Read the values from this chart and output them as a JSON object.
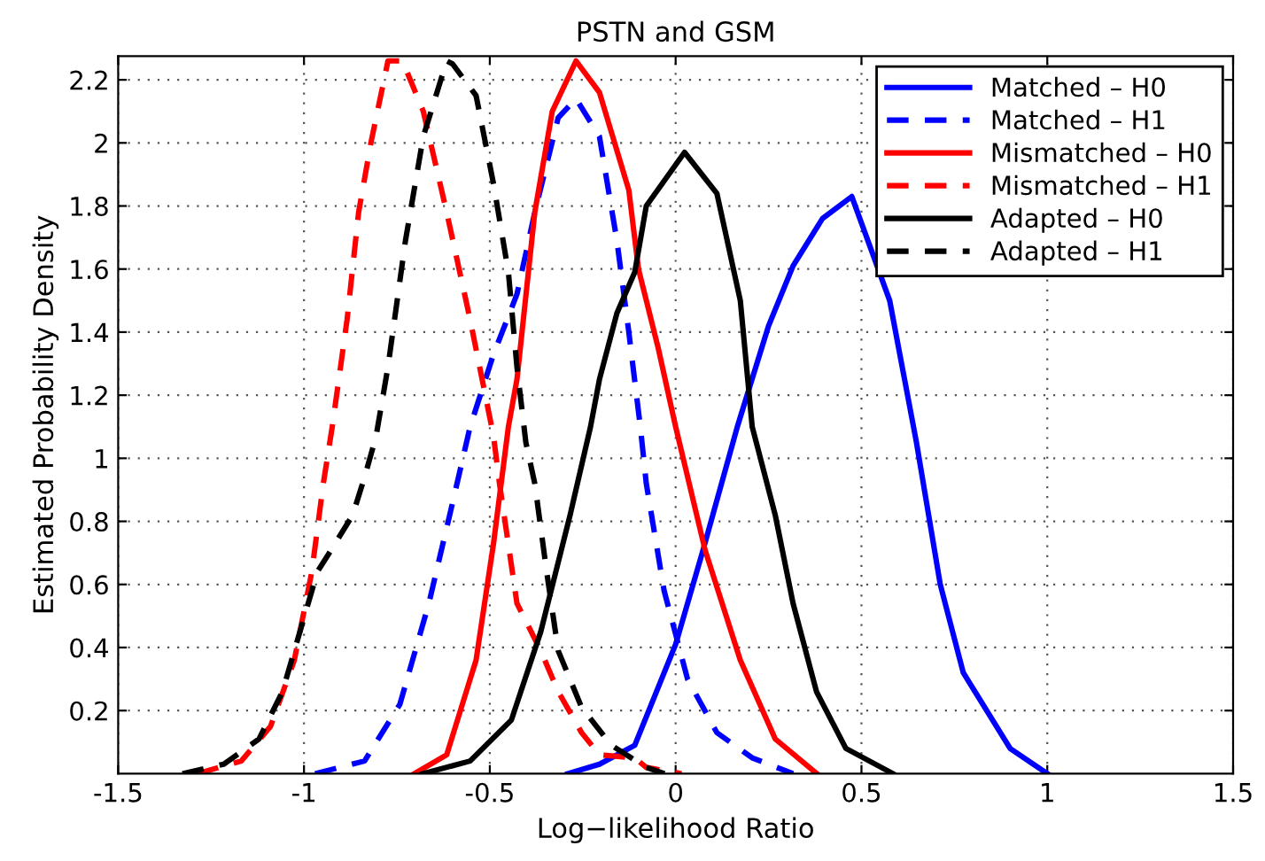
{
  "chart_data": {
    "type": "line",
    "title": "PSTN and GSM",
    "xlabel": "Log−likelihood Ratio",
    "ylabel": "Estimated Probability Density",
    "xlim": [
      -1.5,
      1.5
    ],
    "ylim": [
      0,
      2.275
    ],
    "xticks": [
      -1.5,
      -1,
      -0.5,
      0,
      0.5,
      1,
      1.5
    ],
    "yticks": [
      0.2,
      0.4,
      0.6,
      0.8,
      1,
      1.2,
      1.4,
      1.6,
      1.8,
      2,
      2.2
    ],
    "grid": true,
    "legend": "top right",
    "marker": "none",
    "series": [
      {
        "name": "Matched – H0",
        "color": "#0000ff",
        "line_style": "solid",
        "x": [
          -0.29,
          -0.205,
          -0.11,
          0,
          0.074,
          0.166,
          0.25,
          0.316,
          0.395,
          0.474,
          0.576,
          0.648,
          0.712,
          0.774,
          0.9,
          1.0
        ],
        "values": [
          0,
          0.03,
          0.09,
          0.41,
          0.71,
          1.1,
          1.42,
          1.61,
          1.76,
          1.83,
          1.5,
          1.05,
          0.6,
          0.32,
          0.08,
          0
        ]
      },
      {
        "name": "Matched – H1",
        "color": "#0000ff",
        "line_style": "dashed",
        "x": [
          -0.97,
          -0.837,
          -0.742,
          -0.664,
          -0.6,
          -0.553,
          -0.49,
          -0.427,
          -0.379,
          -0.316,
          -0.268,
          -0.205,
          -0.158,
          -0.126,
          -0.095,
          -0.079,
          -0.031,
          0.032,
          0.111,
          0.206,
          0.316
        ],
        "values": [
          0,
          0.04,
          0.22,
          0.54,
          0.86,
          1.1,
          1.33,
          1.52,
          1.78,
          2.08,
          2.14,
          2.02,
          1.69,
          1.4,
          1.1,
          0.92,
          0.58,
          0.3,
          0.13,
          0.05,
          0
        ]
      },
      {
        "name": "Mismatched – H0",
        "color": "#ff0000",
        "line_style": "solid",
        "x": [
          -0.703,
          -0.616,
          -0.537,
          -0.49,
          -0.45,
          -0.427,
          -0.379,
          -0.332,
          -0.268,
          -0.205,
          -0.126,
          -0.1,
          -0.047,
          0,
          0.079,
          0.174,
          0.268,
          0.38
        ],
        "values": [
          0,
          0.06,
          0.36,
          0.73,
          1.1,
          1.25,
          1.78,
          2.1,
          2.26,
          2.16,
          1.85,
          1.6,
          1.35,
          1.1,
          0.71,
          0.36,
          0.11,
          0
        ]
      },
      {
        "name": "Mismatched – H1",
        "color": "#ff0000",
        "line_style": "dashed",
        "x": [
          -1.287,
          -1.169,
          -1.09,
          -1.026,
          -0.979,
          -0.948,
          -0.924,
          -0.884,
          -0.853,
          -0.82,
          -0.774,
          -0.735,
          -0.679,
          -0.616,
          -0.553,
          -0.49,
          -0.474,
          -0.427,
          -0.363,
          -0.316,
          -0.253,
          -0.205,
          -0.11,
          -0.079,
          0.016
        ],
        "values": [
          0,
          0.04,
          0.15,
          0.36,
          0.64,
          0.92,
          1.1,
          1.44,
          1.78,
          2.0,
          2.26,
          2.26,
          2.1,
          1.78,
          1.44,
          1.07,
          0.92,
          0.54,
          0.39,
          0.26,
          0.13,
          0.06,
          0.05,
          0.02,
          0
        ]
      },
      {
        "name": "Adapted – H0",
        "color": "#000000",
        "line_style": "solid",
        "x": [
          -0.68,
          -0.553,
          -0.442,
          -0.363,
          -0.284,
          -0.229,
          -0.205,
          -0.158,
          -0.11,
          -0.079,
          0.024,
          0.111,
          0.174,
          0.206,
          0.268,
          0.316,
          0.379,
          0.458,
          0.585
        ],
        "values": [
          0,
          0.04,
          0.17,
          0.45,
          0.82,
          1.1,
          1.25,
          1.46,
          1.59,
          1.8,
          1.97,
          1.84,
          1.5,
          1.1,
          0.82,
          0.54,
          0.26,
          0.08,
          0
        ]
      },
      {
        "name": "Adapted – H1",
        "color": "#000000",
        "line_style": "dashed",
        "x": [
          -1.327,
          -1.216,
          -1.121,
          -1.058,
          -1.011,
          -0.964,
          -0.916,
          -0.869,
          -0.837,
          -0.806,
          -0.774,
          -0.727,
          -0.679,
          -0.616,
          -0.6,
          -0.537,
          -0.49,
          -0.45,
          -0.427,
          -0.403,
          -0.379,
          -0.347,
          -0.316,
          -0.253,
          -0.173,
          -0.079,
          -0.03
        ],
        "values": [
          0,
          0.03,
          0.11,
          0.26,
          0.45,
          0.64,
          0.73,
          0.82,
          0.94,
          1.07,
          1.29,
          1.69,
          2.02,
          2.26,
          2.25,
          2.15,
          1.87,
          1.59,
          1.29,
          1.05,
          0.92,
          0.64,
          0.39,
          0.21,
          0.09,
          0.02,
          0
        ]
      }
    ]
  }
}
